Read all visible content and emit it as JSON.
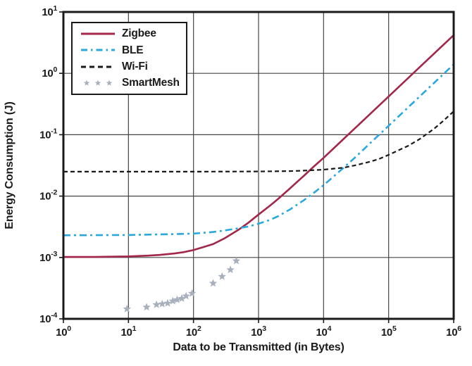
{
  "chart_data": {
    "type": "line",
    "title": "",
    "xlabel": "Data to be Transmitted (in Bytes)",
    "ylabel": "Energy Consumption (J)",
    "x_scale": "log",
    "y_scale": "log",
    "xlim": [
      1,
      1000000
    ],
    "ylim": [
      0.0001,
      10
    ],
    "x_tick_exponents": [
      0,
      1,
      2,
      3,
      4,
      5,
      6
    ],
    "y_tick_exponents": [
      -4,
      -3,
      -2,
      -1,
      0,
      1
    ],
    "grid": true,
    "legend_position": "upper-left-inside",
    "colors": {
      "zigbee": "#A2274A",
      "ble": "#29A8DB",
      "wifi": "#1A1A1A",
      "smartmesh": "#A8B0BD",
      "gridline": "#454545",
      "axis": "#1A1A1A"
    },
    "series": [
      {
        "name": "Zigbee",
        "type": "line",
        "style": "solid",
        "color": "#A2274A",
        "x": [
          1,
          3,
          10,
          20,
          30,
          50,
          70,
          100,
          150,
          200,
          300,
          500,
          700,
          1000,
          1500,
          2000,
          3000,
          5000,
          7000,
          10000,
          20000,
          50000,
          100000,
          300000,
          1000000
        ],
        "y": [
          0.00102,
          0.00102,
          0.00104,
          0.00107,
          0.0011,
          0.00116,
          0.00122,
          0.00132,
          0.0015,
          0.00165,
          0.00205,
          0.00285,
          0.0037,
          0.005,
          0.007,
          0.009,
          0.0132,
          0.0215,
          0.03,
          0.042,
          0.084,
          0.21,
          0.42,
          1.26,
          4.2
        ]
      },
      {
        "name": "BLE",
        "type": "line",
        "style": "dash-dot",
        "color": "#29A8DB",
        "x": [
          1,
          10,
          50,
          100,
          200,
          300,
          500,
          700,
          1000,
          1500,
          2000,
          3000,
          5000,
          7000,
          10000,
          20000,
          30000,
          50000,
          100000,
          300000,
          1000000
        ],
        "y": [
          0.0023,
          0.00232,
          0.0024,
          0.00245,
          0.0026,
          0.00275,
          0.003,
          0.0032,
          0.00355,
          0.0041,
          0.0047,
          0.006,
          0.0086,
          0.0112,
          0.015,
          0.0285,
          0.042,
          0.07,
          0.14,
          0.42,
          1.4
        ]
      },
      {
        "name": "Wi-Fi",
        "type": "line",
        "style": "dashed",
        "color": "#1A1A1A",
        "x": [
          1,
          10,
          100,
          1000,
          3000,
          5000,
          10000,
          20000,
          30000,
          50000,
          70000,
          100000,
          200000,
          300000,
          500000,
          700000,
          1000000
        ],
        "y": [
          0.025,
          0.025,
          0.025,
          0.0252,
          0.0255,
          0.026,
          0.027,
          0.029,
          0.0315,
          0.036,
          0.04,
          0.047,
          0.066,
          0.085,
          0.125,
          0.17,
          0.24
        ]
      },
      {
        "name": "SmartMesh",
        "type": "scatter",
        "marker": "star",
        "color": "#A8B0BD",
        "x": [
          9.5,
          19,
          27,
          33,
          40,
          48,
          56,
          66,
          77,
          95,
          200,
          275,
          370,
          455
        ],
        "y": [
          0.000145,
          0.000155,
          0.00017,
          0.000175,
          0.00018,
          0.000195,
          0.000205,
          0.000215,
          0.000235,
          0.00026,
          0.00038,
          0.00049,
          0.00063,
          0.00088
        ]
      }
    ]
  }
}
